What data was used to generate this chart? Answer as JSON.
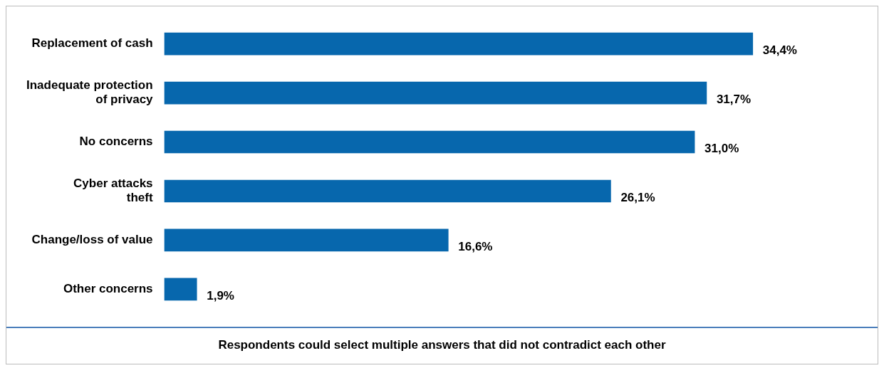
{
  "chart_data": {
    "type": "bar",
    "orientation": "horizontal",
    "categories": [
      "Replacement of cash",
      "Inadequate protection\nof privacy",
      "No concerns",
      "Cyber attacks\ntheft",
      "Change/loss of value",
      "Other concerns"
    ],
    "values": [
      34.4,
      31.7,
      31.0,
      26.1,
      16.6,
      1.9
    ],
    "color": "#0767ad",
    "value_labels": [
      "34,4%",
      "31,7%",
      "31,0%",
      "26,1%",
      "16,6%",
      "1,9%"
    ],
    "tick_labels": "y",
    "legend": false,
    "annotations": [
      "Respondents could select multiple answers that did not contradict each other"
    ]
  }
}
